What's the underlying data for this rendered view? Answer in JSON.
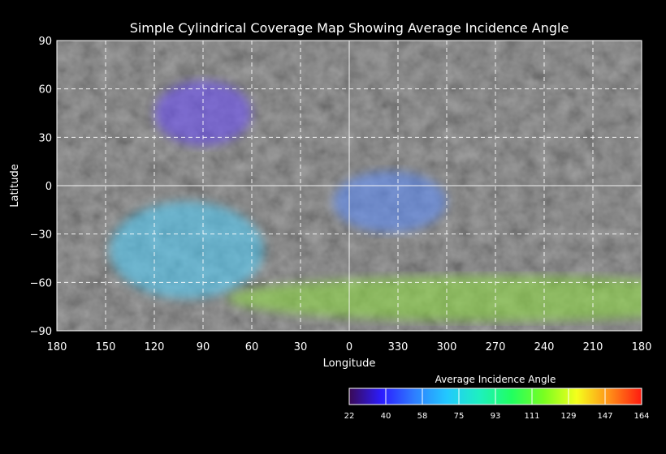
{
  "title": "Simple Cylindrical Coverage Map Showing Average Incidence Angle",
  "xlabel": "Longitude",
  "ylabel": "Latitude",
  "x_ticks": [
    "180",
    "150",
    "120",
    "90",
    "60",
    "30",
    "0",
    "330",
    "300",
    "270",
    "240",
    "210",
    "180"
  ],
  "y_ticks": [
    "90",
    "60",
    "30",
    "0",
    "−30",
    "−60",
    "−90"
  ],
  "colorbar": {
    "title": "Average Incidence Angle",
    "ticks": [
      "22",
      "40",
      "58",
      "75",
      "93",
      "111",
      "129",
      "147",
      "164"
    ],
    "colors": [
      "#3a0a55",
      "#2b1cff",
      "#2e7dff",
      "#22c8ff",
      "#1ef0c0",
      "#20ff60",
      "#7aff20",
      "#f5ff1c",
      "#ff9018",
      "#ff1a10"
    ]
  },
  "coverage_zones": [
    {
      "name": "north-polar-patch",
      "lon_center": 90,
      "lat_center": 45,
      "color": "#6a4cff"
    },
    {
      "name": "southwest-swath",
      "lon_center": 100,
      "lat_center": -40,
      "color": "#4fd1ff"
    },
    {
      "name": "central-swath",
      "lon_center": 335,
      "lat_center": -10,
      "color": "#5a8cff"
    },
    {
      "name": "southern-band",
      "lon_center": 270,
      "lat_center": -70,
      "color": "#8fe040"
    }
  ]
}
